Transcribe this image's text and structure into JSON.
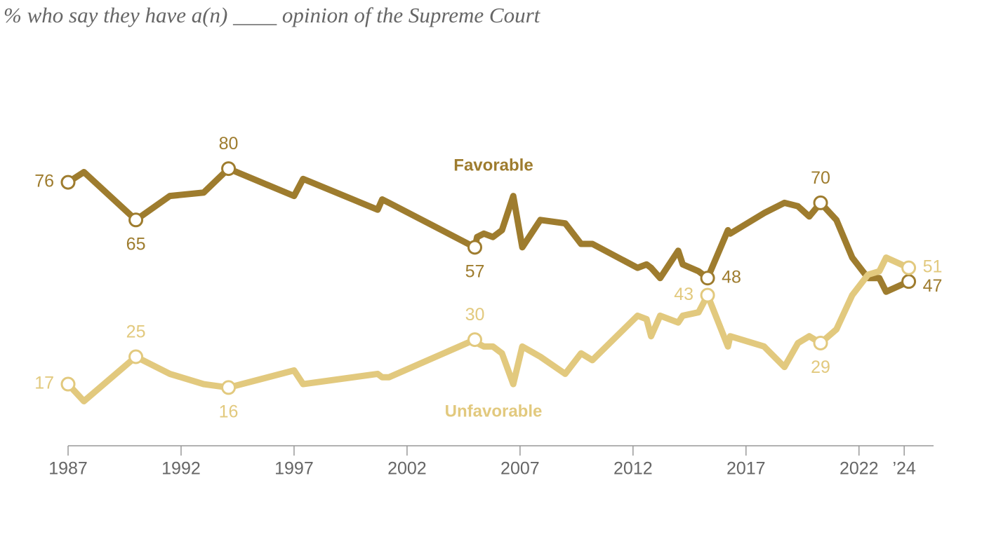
{
  "chart_data": {
    "type": "line",
    "title": "% who say they have a(n) ____ opinion of the Supreme Court",
    "x": [
      1987.0,
      1987.7,
      1990.0,
      1991.5,
      1993.0,
      1994.1,
      1997.0,
      1997.4,
      2000.7,
      2000.9,
      2001.2,
      2005.0,
      2005.1,
      2005.4,
      2005.8,
      2006.2,
      2006.7,
      2007.1,
      2007.9,
      2009.0,
      2009.7,
      2010.2,
      2012.2,
      2012.6,
      2012.8,
      2013.2,
      2014.0,
      2014.2,
      2014.9,
      2015.3,
      2016.2,
      2016.3,
      2017.8,
      2018.7,
      2019.3,
      2019.8,
      2020.3,
      2021.0,
      2021.7,
      2022.4,
      2022.9,
      2023.2,
      2024.2
    ],
    "series": [
      {
        "name": "Favorable",
        "color": "#9e7c2e",
        "values": [
          76,
          79,
          65,
          72,
          73,
          80,
          72,
          77,
          68,
          71,
          70,
          57,
          60,
          61,
          60,
          62,
          72,
          57,
          65,
          64,
          58,
          58,
          51,
          52,
          51,
          48,
          56,
          52,
          50,
          48,
          62,
          61,
          67,
          70,
          69,
          66,
          70,
          65,
          54,
          48,
          48,
          44,
          47
        ],
        "value_labels": [
          "76",
          null,
          "65",
          null,
          null,
          "80",
          null,
          null,
          null,
          null,
          null,
          "57",
          null,
          null,
          null,
          null,
          null,
          null,
          null,
          null,
          null,
          null,
          null,
          null,
          null,
          null,
          null,
          null,
          null,
          "48",
          null,
          null,
          null,
          null,
          null,
          null,
          "70",
          null,
          null,
          null,
          null,
          null,
          "47"
        ]
      },
      {
        "name": "Unfavorable",
        "color": "#e2c97e",
        "values": [
          17,
          12,
          25,
          20,
          17,
          16,
          21,
          17,
          20,
          19,
          19,
          30,
          29,
          28,
          28,
          26,
          17,
          28,
          25,
          20,
          26,
          24,
          37,
          36,
          31,
          37,
          35,
          37,
          38,
          43,
          28,
          31,
          28,
          22,
          29,
          31,
          29,
          33,
          43,
          49,
          50,
          54,
          51
        ],
        "value_labels": [
          "17",
          null,
          "25",
          null,
          null,
          "16",
          null,
          null,
          null,
          null,
          null,
          "30",
          null,
          null,
          null,
          null,
          null,
          null,
          null,
          null,
          null,
          null,
          null,
          null,
          null,
          null,
          null,
          null,
          null,
          "43",
          null,
          null,
          null,
          null,
          null,
          null,
          "29",
          null,
          null,
          null,
          null,
          null,
          "51"
        ]
      }
    ],
    "xlim": [
      1987,
      2025.3
    ],
    "xticks": [
      1987,
      1992,
      1997,
      2002,
      2007,
      2012,
      2017,
      2022,
      {
        "value": 2024,
        "label": "’24"
      }
    ],
    "ylim": [
      0,
      100
    ]
  }
}
